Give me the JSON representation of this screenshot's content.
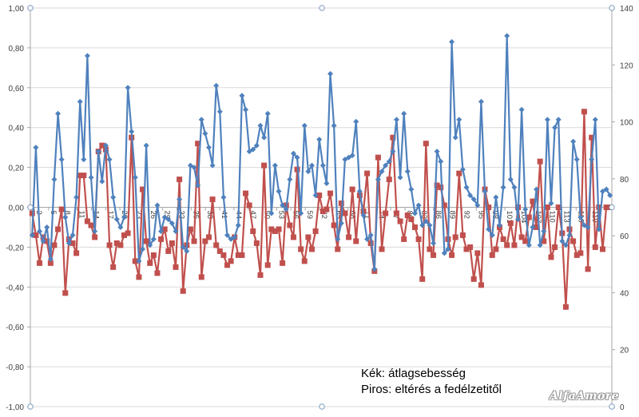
{
  "chart_data": {
    "type": "line",
    "title": "",
    "xlabel": "",
    "ylabel": "",
    "grid": true,
    "left_axis": {
      "ylim": [
        -1.0,
        1.0
      ],
      "ticks": [
        "1,00",
        "0,80",
        "0,60",
        "0,40",
        "0,20",
        "0,00",
        "-0,20",
        "-0,40",
        "-0,60",
        "-0,80",
        "-1,00"
      ]
    },
    "right_axis": {
      "ylim": [
        0,
        140
      ],
      "ticks": [
        "140",
        "120",
        "100",
        "80",
        "60",
        "40",
        "20",
        "0"
      ]
    },
    "x_ticks": [
      "2",
      "5",
      "8",
      "11",
      "14",
      "17",
      "20",
      "23",
      "26",
      "29",
      "32",
      "35",
      "38",
      "41",
      "44",
      "47",
      "50",
      "53",
      "56",
      "59",
      "62",
      "65",
      "68",
      "71",
      "74",
      "77",
      "80",
      "83",
      "86",
      "89",
      "92",
      "95",
      "98",
      "101",
      "104",
      "107",
      "110",
      "113",
      "116",
      "119"
    ],
    "series": [
      {
        "name": "Kék: átlagsebesség",
        "color": "#4F81BD",
        "marker": "diamond",
        "axis": "left",
        "values": [
          -0.14,
          0.3,
          -0.12,
          -0.17,
          -0.1,
          -0.26,
          0.14,
          0.47,
          0.24,
          -0.05,
          -0.18,
          -0.14,
          0.05,
          0.53,
          0.24,
          0.76,
          0.15,
          -0.12,
          0.28,
          0.13,
          0.31,
          0.24,
          0.05,
          -0.06,
          -0.1,
          -0.05,
          0.6,
          0.38,
          0.15,
          -0.27,
          -0.21,
          0.31,
          -0.19,
          -0.16,
          0.01,
          -0.12,
          -0.05,
          -0.06,
          -0.08,
          -0.12,
          0.04,
          -0.2,
          -0.22,
          0.21,
          0.2,
          0.11,
          0.44,
          0.37,
          0.3,
          0.21,
          0.61,
          0.48,
          0.05,
          -0.14,
          -0.16,
          -0.15,
          -0.09,
          0.56,
          0.49,
          0.28,
          0.29,
          0.31,
          0.41,
          0.35,
          0.47,
          -0.03,
          0.21,
          0.08,
          0.01,
          -0.01,
          0.14,
          0.27,
          0.25,
          -0.03,
          0.41,
          0.18,
          0.21,
          0.06,
          0.34,
          0.21,
          0.12,
          0.67,
          0.41,
          -0.16,
          -0.08,
          0.24,
          0.25,
          0.26,
          0.43,
          0.08,
          -0.04,
          -0.16,
          -0.14,
          -0.31,
          0.14,
          0.18,
          0.21,
          0.23,
          0.28,
          0.44,
          0.15,
          0.47,
          0.18,
          0.09,
          -0.03,
          0.01,
          -0.09,
          -0.07,
          -0.09,
          -0.18,
          0.28,
          0.23,
          -0.23,
          -0.21,
          0.83,
          0.35,
          0.44,
          0.19,
          0.1,
          0.06,
          0.04,
          0.01,
          0.53,
          0.08,
          -0.11,
          -0.14,
          0.05,
          -0.09,
          0.1,
          0.86,
          0.14,
          0.1,
          -0.06,
          0.49,
          -0.01,
          -0.19,
          -0.1,
          0.09,
          -0.19,
          -0.12,
          0.44,
          0.02,
          0.4,
          0.44,
          -0.17,
          -0.19,
          -0.14,
          0.33,
          0.24,
          -0.05,
          -0.09,
          -0.1,
          0.24,
          0.44,
          -0.11,
          0.08,
          0.09,
          0.06
        ]
      },
      {
        "name": "Piros: eltérés a fedélzetitől",
        "color": "#C0504D",
        "marker": "square",
        "axis": "left",
        "values": [
          -0.03,
          -0.14,
          -0.28,
          -0.15,
          -0.17,
          -0.28,
          -0.19,
          -0.11,
          -0.01,
          -0.43,
          -0.16,
          -0.18,
          -0.23,
          0.16,
          0.16,
          -0.07,
          -0.09,
          -0.15,
          0.28,
          0.31,
          0.29,
          -0.19,
          -0.3,
          -0.18,
          -0.19,
          -0.14,
          -0.13,
          0.35,
          -0.27,
          -0.35,
          0.09,
          -0.17,
          -0.28,
          -0.24,
          -0.33,
          -0.16,
          -0.11,
          -0.22,
          -0.18,
          -0.3,
          0.14,
          -0.42,
          -0.19,
          -0.11,
          -0.17,
          0.32,
          -0.35,
          -0.17,
          -0.15,
          0.04,
          -0.19,
          -0.22,
          -0.24,
          -0.29,
          -0.27,
          -0.15,
          -0.24,
          -0.24,
          0.07,
          0.01,
          -0.12,
          -0.18,
          -0.34,
          0.21,
          -0.29,
          -0.11,
          -0.12,
          -0.11,
          -0.28,
          0.01,
          -0.09,
          -0.15,
          0.19,
          -0.21,
          -0.27,
          -0.15,
          -0.21,
          -0.12,
          0.06,
          -0.02,
          -0.01,
          0.07,
          -0.09,
          -0.21,
          0.02,
          -0.03,
          -0.15,
          0.09,
          -0.17,
          0.06,
          -0.02,
          0.17,
          -0.18,
          -0.32,
          0.25,
          -0.21,
          -0.03,
          0.14,
          0.35,
          -0.03,
          -0.07,
          -0.16,
          -0.04,
          -0.06,
          -0.1,
          -0.16,
          -0.36,
          0.32,
          -0.21,
          -0.24,
          0.11,
          0.1,
          0.01,
          -0.16,
          -0.24,
          -0.15,
          0.17,
          -0.14,
          -0.21,
          -0.2,
          -0.36,
          -0.23,
          -0.39,
          0.09,
          0.0,
          -0.24,
          -0.21,
          -0.1,
          -0.16,
          -0.19,
          -0.08,
          -0.19,
          0.0,
          -0.15,
          -0.17,
          -0.05,
          0.03,
          -0.1,
          0.23,
          -0.17,
          0.0,
          -0.25,
          -0.2,
          0.0,
          -0.13,
          -0.5,
          -0.11,
          -0.17,
          -0.24,
          -0.23,
          0.48,
          -0.31,
          0.35,
          -0.2,
          0.0,
          -0.21,
          0.0,
          0.0
        ]
      }
    ]
  },
  "legend": {
    "line1": "Kék: átlagsebesség",
    "line2": "Piros: eltérés a fedélzetitől"
  },
  "watermark": "AlfaAmore",
  "colors": {
    "grid": "#D9D9D9",
    "axis": "#A6A6A6",
    "text": "#404040",
    "handle": "#7F9CC0"
  }
}
